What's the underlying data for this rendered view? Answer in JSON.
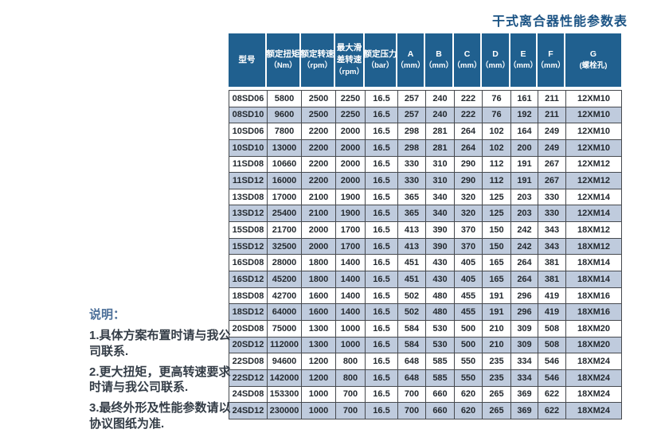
{
  "title": "干式离合器性能参数表",
  "notes": {
    "heading": "说明：",
    "items": [
      "1.具体方案布置时请与我公司联系.",
      "2.更大扭矩，更高转速要求时请与我公司联系.",
      "3.最终外形及性能参数请以协议图纸为准."
    ]
  },
  "table": {
    "columns": [
      {
        "lines": [
          "型号"
        ]
      },
      {
        "lines": [
          "额定扭矩",
          "（Nm）"
        ]
      },
      {
        "lines": [
          "额定转速",
          "（rpm）"
        ]
      },
      {
        "lines": [
          "最大滑",
          "差转速",
          "（rpm）"
        ]
      },
      {
        "lines": [
          "额定压力",
          "（bar）"
        ]
      },
      {
        "lines": [
          "A",
          "（mm）"
        ]
      },
      {
        "lines": [
          "B",
          "（mm）"
        ]
      },
      {
        "lines": [
          "C",
          "（mm）"
        ]
      },
      {
        "lines": [
          "D",
          "（mm）"
        ]
      },
      {
        "lines": [
          "E",
          "（mm）"
        ]
      },
      {
        "lines": [
          "F",
          "（mm）"
        ]
      },
      {
        "lines": [
          "G",
          "(螺栓孔)"
        ]
      }
    ],
    "rows": [
      [
        "08SD06",
        "5800",
        "2500",
        "2250",
        "16.5",
        "257",
        "240",
        "222",
        "76",
        "161",
        "211",
        "12XM10"
      ],
      [
        "08SD10",
        "9600",
        "2500",
        "2250",
        "16.5",
        "257",
        "240",
        "222",
        "76",
        "192",
        "211",
        "12XM10"
      ],
      [
        "10SD06",
        "7800",
        "2200",
        "2000",
        "16.5",
        "298",
        "281",
        "264",
        "102",
        "164",
        "249",
        "12XM10"
      ],
      [
        "10SD10",
        "13000",
        "2200",
        "2000",
        "16.5",
        "298",
        "281",
        "264",
        "102",
        "200",
        "249",
        "12XM10"
      ],
      [
        "11SD08",
        "10660",
        "2200",
        "2000",
        "16.5",
        "330",
        "310",
        "290",
        "112",
        "191",
        "267",
        "12XM12"
      ],
      [
        "11SD12",
        "16000",
        "2200",
        "2000",
        "16.5",
        "330",
        "310",
        "290",
        "112",
        "191",
        "267",
        "12XM12"
      ],
      [
        "13SD08",
        "17000",
        "2100",
        "1900",
        "16.5",
        "365",
        "340",
        "320",
        "125",
        "203",
        "330",
        "12XM14"
      ],
      [
        "13SD12",
        "25400",
        "2100",
        "1900",
        "16.5",
        "365",
        "340",
        "320",
        "125",
        "203",
        "330",
        "12XM14"
      ],
      [
        "15SD08",
        "21700",
        "2000",
        "1700",
        "16.5",
        "413",
        "390",
        "370",
        "150",
        "242",
        "343",
        "18XM12"
      ],
      [
        "15SD12",
        "32500",
        "2000",
        "1700",
        "16.5",
        "413",
        "390",
        "370",
        "150",
        "242",
        "343",
        "18XM12"
      ],
      [
        "16SD08",
        "28000",
        "1800",
        "1400",
        "16.5",
        "451",
        "430",
        "405",
        "165",
        "264",
        "381",
        "18XM14"
      ],
      [
        "16SD12",
        "45200",
        "1800",
        "1400",
        "16.5",
        "451",
        "430",
        "405",
        "165",
        "264",
        "381",
        "18XM14"
      ],
      [
        "18SD08",
        "42700",
        "1600",
        "1400",
        "16.5",
        "502",
        "480",
        "455",
        "191",
        "296",
        "419",
        "18XM16"
      ],
      [
        "18SD12",
        "64000",
        "1600",
        "1400",
        "16.5",
        "502",
        "480",
        "455",
        "191",
        "296",
        "419",
        "18XM16"
      ],
      [
        "20SD08",
        "75000",
        "1300",
        "1000",
        "16.5",
        "584",
        "530",
        "500",
        "210",
        "309",
        "508",
        "18XM20"
      ],
      [
        "20SD12",
        "112000",
        "1300",
        "1000",
        "16.5",
        "584",
        "530",
        "500",
        "210",
        "309",
        "508",
        "18XM20"
      ],
      [
        "22SD08",
        "94600",
        "1200",
        "800",
        "16.5",
        "648",
        "585",
        "550",
        "235",
        "334",
        "546",
        "18XM24"
      ],
      [
        "22SD12",
        "142000",
        "1200",
        "800",
        "16.5",
        "648",
        "585",
        "550",
        "235",
        "334",
        "546",
        "18XM24"
      ],
      [
        "24SD08",
        "153300",
        "1000",
        "700",
        "16.5",
        "700",
        "660",
        "620",
        "265",
        "369",
        "622",
        "18XM24"
      ],
      [
        "24SD12",
        "230000",
        "1000",
        "700",
        "16.5",
        "700",
        "660",
        "620",
        "265",
        "369",
        "622",
        "18XM24"
      ]
    ]
  },
  "colors": {
    "header_bg": "#20608f",
    "row_alt_bg": "#bfcbdd",
    "row_bg": "#ffffff",
    "border": "#46494e",
    "header_text": "#ffffff",
    "body_text": "#23292f",
    "title_color": "#1b5384",
    "notes_heading_color": "#4c6f99",
    "notes_text_color": "#343d47"
  }
}
